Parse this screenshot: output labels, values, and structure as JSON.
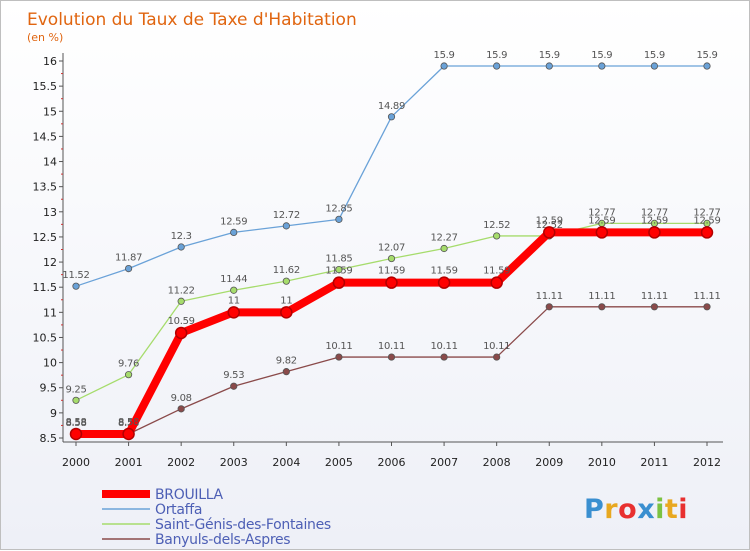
{
  "chart_data": {
    "type": "line",
    "title": "Evolution du Taux de Taxe d'Habitation",
    "subtitle": "(en %)",
    "x": [
      "2000",
      "2001",
      "2002",
      "2003",
      "2004",
      "2005",
      "2006",
      "2007",
      "2008",
      "2009",
      "2010",
      "2011",
      "2012"
    ],
    "ylim": [
      8.5,
      16
    ],
    "yticks": [
      "8.5",
      "9",
      "9.5",
      "10",
      "10.5",
      "11",
      "11.5",
      "12",
      "12.5",
      "13",
      "13.5",
      "14",
      "14.5",
      "15",
      "15.5",
      "16"
    ],
    "grid": false,
    "legend": "bottom-left",
    "series": [
      {
        "name": "BROUILLA",
        "color": "#ff0000",
        "values": [
          8.58,
          8.58,
          10.59,
          11,
          11,
          11.59,
          11.59,
          11.59,
          11.59,
          12.59,
          12.59,
          12.59,
          12.59
        ],
        "labels": [
          "8.58",
          "8.58",
          "10.59",
          "11",
          "11",
          "11.59",
          "11.59",
          "11.59",
          "11.59",
          "12.59",
          "12.59",
          "12.59",
          "12.59"
        ]
      },
      {
        "name": "Ortaffa",
        "color": "#6aa2d8",
        "values": [
          11.52,
          11.87,
          12.3,
          12.59,
          12.72,
          12.85,
          14.89,
          15.9,
          15.9,
          15.9,
          15.9,
          15.9,
          15.9
        ],
        "labels": [
          "11.52",
          "11.87",
          "12.3",
          "12.59",
          "12.72",
          "12.85",
          "14.89",
          "15.9",
          "15.9",
          "15.9",
          "15.9",
          "15.9",
          "15.9"
        ]
      },
      {
        "name": "Saint-Génis-des-Fontaines",
        "color": "#a6dc6c",
        "values": [
          9.25,
          9.76,
          11.22,
          11.44,
          11.62,
          11.85,
          12.07,
          12.27,
          12.52,
          12.52,
          12.77,
          12.77,
          12.77
        ],
        "labels": [
          "9.25",
          "9.76",
          "11.22",
          "11.44",
          "11.62",
          "11.85",
          "12.07",
          "12.27",
          "12.52",
          "12.52",
          "12.77",
          "12.77",
          "12.77"
        ]
      },
      {
        "name": "Banyuls-dels-Aspres",
        "color": "#8a4a4a",
        "values": [
          8.58,
          8.58,
          9.08,
          9.53,
          9.82,
          10.11,
          10.11,
          10.11,
          10.11,
          11.11,
          11.11,
          11.11,
          11.11
        ],
        "labels": [
          "8.58",
          "8.58",
          "9.08",
          "9.53",
          "9.82",
          "10.11",
          "10.11",
          "10.11",
          "10.11",
          "11.11",
          "11.11",
          "11.11",
          "11.11"
        ]
      }
    ]
  },
  "logo": {
    "text": "Proxiti"
  }
}
